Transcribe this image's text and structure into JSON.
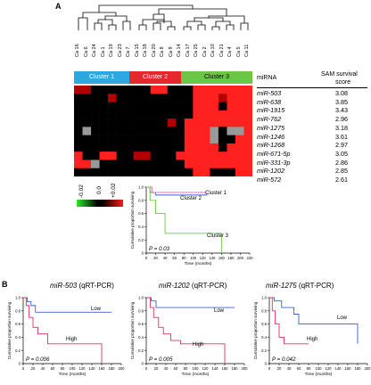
{
  "panel_a_label": "A",
  "panel_b_label": "B",
  "samples": [
    "Ca 16",
    "Ca 6",
    "Ca 24",
    "Ca 1",
    "Ca 19",
    "Ca 23",
    "Ca 7",
    "Ca 15",
    "Ca 18",
    "Ca 20",
    "Ca 8",
    "Ca 9",
    "Ca 14",
    "Ca 17",
    "Ca 25",
    "Ca 2",
    "Ca 10",
    "Ca 21",
    "Ca 4",
    "Ca 5",
    "Ca 11"
  ],
  "clusters": [
    {
      "label": "Cluster 1",
      "color": "#2aa8e0"
    },
    {
      "label": "Cluster 2",
      "color": "#e8262e"
    },
    {
      "label": "Cluster 3",
      "color": "#6cc644"
    }
  ],
  "table": {
    "col1_header": "miRNA",
    "col2_header_line1": "SAM survival",
    "col2_header_line2": "score",
    "rows": [
      {
        "name": "miR-503",
        "score": "3.08"
      },
      {
        "name": "miR-638",
        "score": "3.85"
      },
      {
        "name": "miR-1915",
        "score": "3.43"
      },
      {
        "name": "miR-762",
        "score": "2.96"
      },
      {
        "name": "miR-1275",
        "score": "3.18"
      },
      {
        "name": "miR-1246",
        "score": "3.61"
      },
      {
        "name": "miR-1268",
        "score": "2.97"
      },
      {
        "name": "miR-671-5p",
        "score": "3.05"
      },
      {
        "name": "miR-331-3p",
        "score": "2.86"
      },
      {
        "name": "miR-1202",
        "score": "2.85"
      },
      {
        "name": "miR-572",
        "score": "2.61"
      }
    ]
  },
  "heatmap_colors": {
    "high": "#ff2020",
    "mid": "#b00000",
    "zero": "#000000",
    "missing": "#999999"
  },
  "color_scale": {
    "neg": "-0.02",
    "zero": "0.0",
    "pos": "+0.02"
  },
  "chart_data": [
    {
      "type": "line",
      "subtype": "kaplan-meier",
      "ylabel": "Cumulative proportion surviving",
      "xlabel": "Time (months)",
      "x_ticks": [
        "0",
        "20",
        "40",
        "60",
        "80",
        "100",
        "120",
        "140",
        "160",
        "180",
        "200",
        "220"
      ],
      "y_ticks": [
        "0",
        "0.2",
        "0.4",
        "0.6",
        "0.8",
        "1.0"
      ],
      "xlim": [
        0,
        220
      ],
      "ylim": [
        0,
        1.0
      ],
      "annotation": "P = 0.03",
      "series": [
        {
          "name": "Cluster 1",
          "color": "#3a5fcd",
          "x": [
            0,
            8,
            20,
            130
          ],
          "y": [
            1.0,
            0.92,
            0.88,
            0.88
          ]
        },
        {
          "name": "Cluster 2",
          "color": "#e060a0",
          "x": [
            0,
            12,
            60,
            130
          ],
          "y": [
            1.0,
            0.92,
            0.92,
            0.92
          ]
        },
        {
          "name": "Cluster 3",
          "color": "#6cc644",
          "x": [
            0,
            8,
            20,
            40,
            160
          ],
          "y": [
            1.0,
            0.8,
            0.6,
            0.3,
            0.0
          ]
        }
      ]
    },
    {
      "type": "line",
      "subtype": "kaplan-meier",
      "title_italic": "miR-503",
      "title_rest": " (qRT-PCR)",
      "ylabel": "Cumulative proportion surviving",
      "xlabel": "Time (months)",
      "x_ticks": [
        "0",
        "20",
        "40",
        "60",
        "80",
        "100",
        "120",
        "140",
        "160",
        "180",
        "200"
      ],
      "y_ticks": [
        "0",
        "0.2",
        "0.4",
        "0.6",
        "0.8",
        "1.0"
      ],
      "xlim": [
        0,
        200
      ],
      "ylim": [
        0,
        1.0
      ],
      "annotation": "P = 0.006",
      "series": [
        {
          "name": "Low",
          "color": "#3a5fcd",
          "x": [
            0,
            8,
            16,
            25,
            180
          ],
          "y": [
            1.0,
            0.94,
            0.88,
            0.78,
            0.78
          ]
        },
        {
          "name": "High",
          "color": "#e03060",
          "x": [
            0,
            6,
            12,
            20,
            30,
            50,
            60,
            160,
            160
          ],
          "y": [
            1.0,
            0.88,
            0.7,
            0.55,
            0.45,
            0.3,
            0.3,
            0.3,
            0.0
          ]
        }
      ]
    },
    {
      "type": "line",
      "subtype": "kaplan-meier",
      "title_italic": "miR-1202",
      "title_rest": " (qRT-PCR)",
      "ylabel": "Cumulative proportion surviving",
      "xlabel": "Time (months)",
      "x_ticks": [
        "0",
        "20",
        "40",
        "60",
        "80",
        "100",
        "120",
        "140",
        "160",
        "180",
        "200"
      ],
      "y_ticks": [
        "0",
        "0.2",
        "0.4",
        "0.6",
        "0.8",
        "1.0"
      ],
      "xlim": [
        0,
        200
      ],
      "ylim": [
        0,
        1.0
      ],
      "annotation": "P = 0.005",
      "series": [
        {
          "name": "Low",
          "color": "#3a5fcd",
          "x": [
            0,
            10,
            20,
            180
          ],
          "y": [
            1.0,
            0.95,
            0.85,
            0.85
          ]
        },
        {
          "name": "High",
          "color": "#e03060",
          "x": [
            0,
            8,
            15,
            25,
            35,
            50,
            70,
            160,
            160
          ],
          "y": [
            1.0,
            0.85,
            0.7,
            0.55,
            0.45,
            0.35,
            0.3,
            0.3,
            0.0
          ]
        }
      ]
    },
    {
      "type": "line",
      "subtype": "kaplan-meier",
      "title_italic": "miR-1275",
      "title_rest": " (qRT-PCR)",
      "ylabel": "Cumulative proportion surviving",
      "xlabel": "Time (months)",
      "x_ticks": [
        "0",
        "20",
        "40",
        "60",
        "80",
        "100",
        "120",
        "140",
        "160",
        "180",
        "200"
      ],
      "y_ticks": [
        "0",
        "0.2",
        "0.4",
        "0.6",
        "0.8",
        "1.0"
      ],
      "xlim": [
        0,
        200
      ],
      "ylim": [
        0,
        1.0
      ],
      "annotation": "P = 0.042",
      "series": [
        {
          "name": "Low",
          "color": "#3a5fcd",
          "x": [
            0,
            10,
            25,
            50,
            60,
            80,
            160,
            180
          ],
          "y": [
            1.0,
            0.95,
            0.85,
            0.75,
            0.6,
            0.6,
            0.6,
            0.3
          ]
        },
        {
          "name": "High",
          "color": "#e03060",
          "x": [
            0,
            6,
            12,
            20,
            30,
            80
          ],
          "y": [
            1.0,
            0.8,
            0.6,
            0.4,
            0.3,
            0.3
          ]
        }
      ]
    }
  ]
}
